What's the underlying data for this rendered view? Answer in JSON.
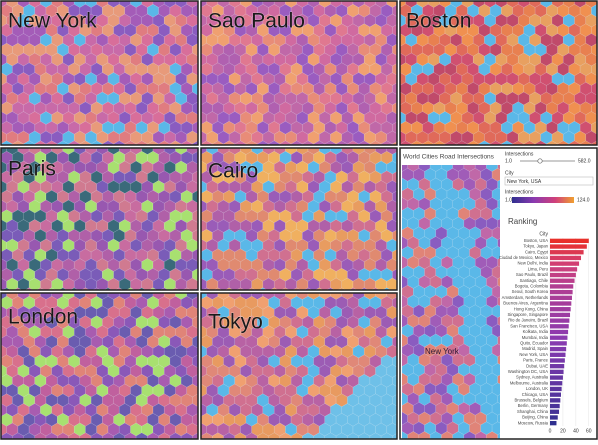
{
  "panels": [
    {
      "label": "New York"
    },
    {
      "label": "Sao Paulo"
    },
    {
      "label": "Boston"
    },
    {
      "label": "Paris"
    },
    {
      "label": "Cairo"
    },
    {
      "label": "London"
    },
    {
      "label": "Tokyo"
    }
  ],
  "dashboard": {
    "title": "World Cities Road Intersections",
    "slider_label": "Intersections",
    "slider_min": "1.0",
    "slider_max": "582.0",
    "city_label": "City",
    "city_value": "New York, USA",
    "legend_label": "Intersections",
    "legend_min": "1.0",
    "legend_max": "124.0",
    "map_label": "New York",
    "chart_data": {
      "type": "bar",
      "title": "Ranking",
      "category_header": "City",
      "categories": [
        "Boston, USA",
        "Tokyo, Japan",
        "Cairo, Egypt",
        "Ciudad de Mexico, Mexico",
        "New Delhi, India",
        "Lima, Peru",
        "Sao Paulo, Brazil",
        "Santiago, Chile",
        "Bogota, Colombia",
        "Seoul, South Korea",
        "Amsterdam, Netherlands",
        "Buenos Aires, Argentina",
        "Hong Kong, China",
        "Singapore, Singapore",
        "Rio de Janeiro, Brazil",
        "San Francisco, USA",
        "Kolkata, India",
        "Mumbai, India",
        "Quito, Ecuador",
        "Madrid, Spain",
        "New York, USA",
        "Paris, France",
        "Dubai, UAE",
        "Washington DC, USA",
        "Sydney, Australia",
        "Melbourne, Australia",
        "London, UK",
        "Chicago, USA",
        "Brussels, Belgium",
        "Berlin, Germany",
        "Shanghai, China",
        "Beijing, China",
        "Moscow, Russia"
      ],
      "values": [
        60,
        57,
        52,
        48,
        45,
        42,
        40,
        38,
        36,
        35,
        34,
        33,
        32,
        31,
        30,
        29,
        28,
        27,
        26,
        25,
        24,
        23,
        22,
        21,
        20,
        19,
        18,
        17,
        16,
        15,
        14,
        12,
        10
      ],
      "xlim": [
        0,
        65
      ],
      "xticks": [
        0,
        20,
        40,
        60
      ],
      "colormap": [
        "#2f2f8f",
        "#8a3ab0",
        "#d0407a",
        "#e8302a"
      ]
    }
  }
}
